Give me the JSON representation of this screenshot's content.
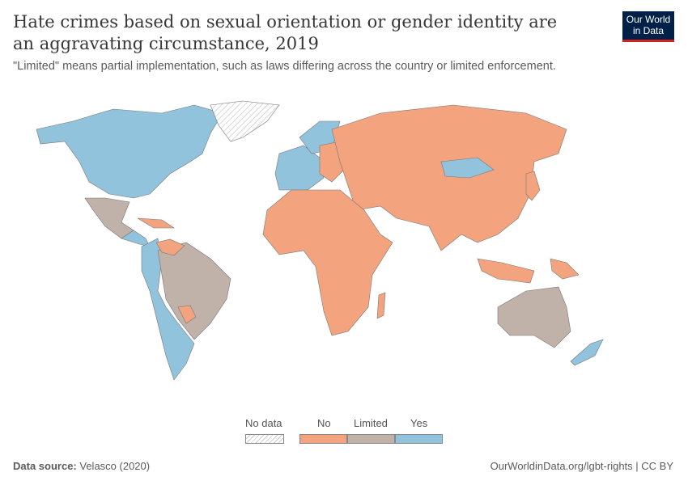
{
  "title": "Hate crimes based on sexual orientation or gender identity are an aggravating circumstance, 2019",
  "subtitle": "\"Limited\" means partial implementation, such as laws differing across the country or limited enforcement.",
  "logo": {
    "line1": "Our World",
    "line2": "in Data"
  },
  "legend": {
    "no_data": {
      "label": "No data",
      "pattern": "hatched"
    },
    "categories": [
      {
        "label": "No",
        "color": "#f3a37e"
      },
      {
        "label": "Limited",
        "color": "#c0b1a9"
      },
      {
        "label": "Yes",
        "color": "#92c3dc"
      }
    ]
  },
  "footer": {
    "source_label": "Data source:",
    "source": "Velasco (2020)",
    "url_license": "OurWorldinData.org/lgbt-rights | CC BY"
  }
}
